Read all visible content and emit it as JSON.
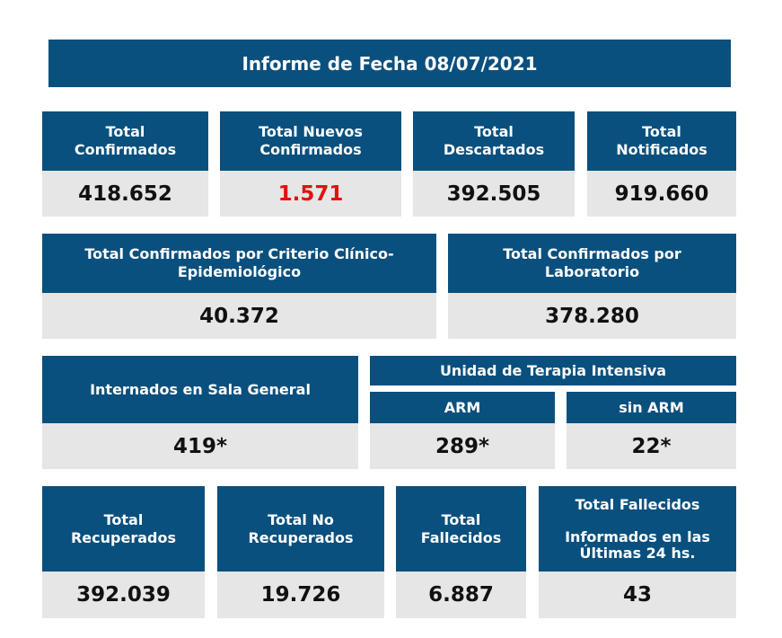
{
  "title": "Informe de Fecha 08/07/2021",
  "row1": [
    {
      "label": "Total\nConfirmados",
      "value": "418.652"
    },
    {
      "label": "Total Nuevos\nConfirmados",
      "value": "1.571"
    },
    {
      "label": "Total\nDescartados",
      "value": "392.505"
    },
    {
      "label": "Total\nNotificados",
      "value": "919.660"
    }
  ],
  "row2": [
    {
      "label": "Total Confirmados por Criterio Clínico-\nEpidemiológico",
      "value": "40.372"
    },
    {
      "label": "Total Confirmados por\nLaboratorio",
      "value": "378.280"
    }
  ],
  "row3": {
    "sala_general": {
      "label": "Internados en Sala General",
      "value": "419*"
    },
    "uti_header": "Unidad de Terapia Intensiva",
    "arm": {
      "label": "ARM",
      "value": "289*"
    },
    "sin_arm": {
      "label": "sin ARM",
      "value": "22*"
    }
  },
  "row4": [
    {
      "label": "Total\nRecuperados",
      "value": "392.039"
    },
    {
      "label": "Total No\nRecuperados",
      "value": "19.726"
    },
    {
      "label": "Total\nFallecidos",
      "value": "6.887"
    },
    {
      "label": "Total Fallecidos\n\nInformados en las\nÚltimas 24 hs.",
      "value": "43"
    }
  ],
  "colors": {
    "header_bg": "#0a507e",
    "value_bg": "#e6e6e6",
    "highlight": "#e3110d"
  }
}
